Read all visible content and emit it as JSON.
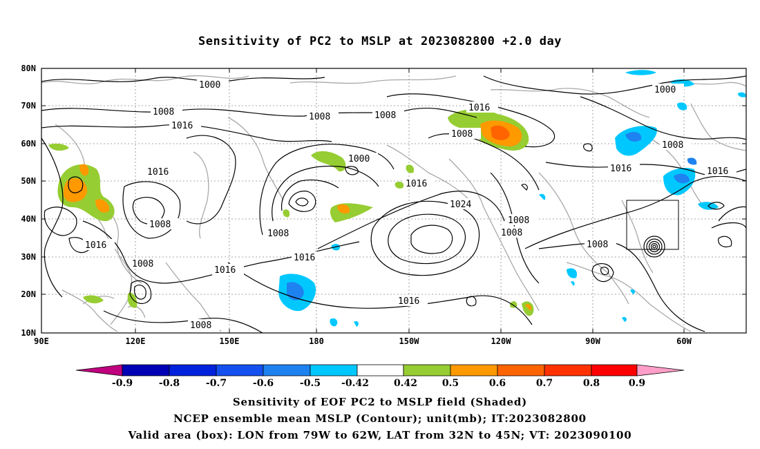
{
  "title": "Sensitivity of PC2 to MSLP at 2023082800 +2.0 day",
  "map": {
    "lat_ticks": [
      "80N",
      "70N",
      "60N",
      "50N",
      "40N",
      "30N",
      "20N",
      "10N"
    ],
    "lon_ticks": [
      "90E",
      "120E",
      "150E",
      "180",
      "150W",
      "120W",
      "90W",
      "60W"
    ],
    "contour_labels": [
      "1000",
      "1008",
      "1016",
      "1024"
    ],
    "valid_box": {
      "lon_from": "79W",
      "lon_to": "62W",
      "lat_from": "32N",
      "lat_to": "45N"
    },
    "contour_color": "#000000",
    "coastline_color": "#a8a8a8"
  },
  "colorbar": {
    "ticks": [
      "-0.9",
      "-0.8",
      "-0.7",
      "-0.6",
      "-0.5",
      "-0.42",
      "0.42",
      "0.5",
      "0.6",
      "0.7",
      "0.8",
      "0.9"
    ],
    "colors": [
      "#c0007f",
      "#0000b4",
      "#0022dd",
      "#1450f0",
      "#1e82f0",
      "#00c8ff",
      "#ffffff",
      "#96cd32",
      "#ff9900",
      "#ff6400",
      "#ff3200",
      "#ff0000",
      "#ff9ec8"
    ]
  },
  "captions": [
    "Sensitivity of EOF PC2 to MSLP field (Shaded)",
    "NCEP ensemble mean MSLP (Contour); unit(mb); IT:2023082800",
    "Valid area (box): LON from 79W to 62W, LAT from 32N to 45N; VT: 2023090100"
  ]
}
